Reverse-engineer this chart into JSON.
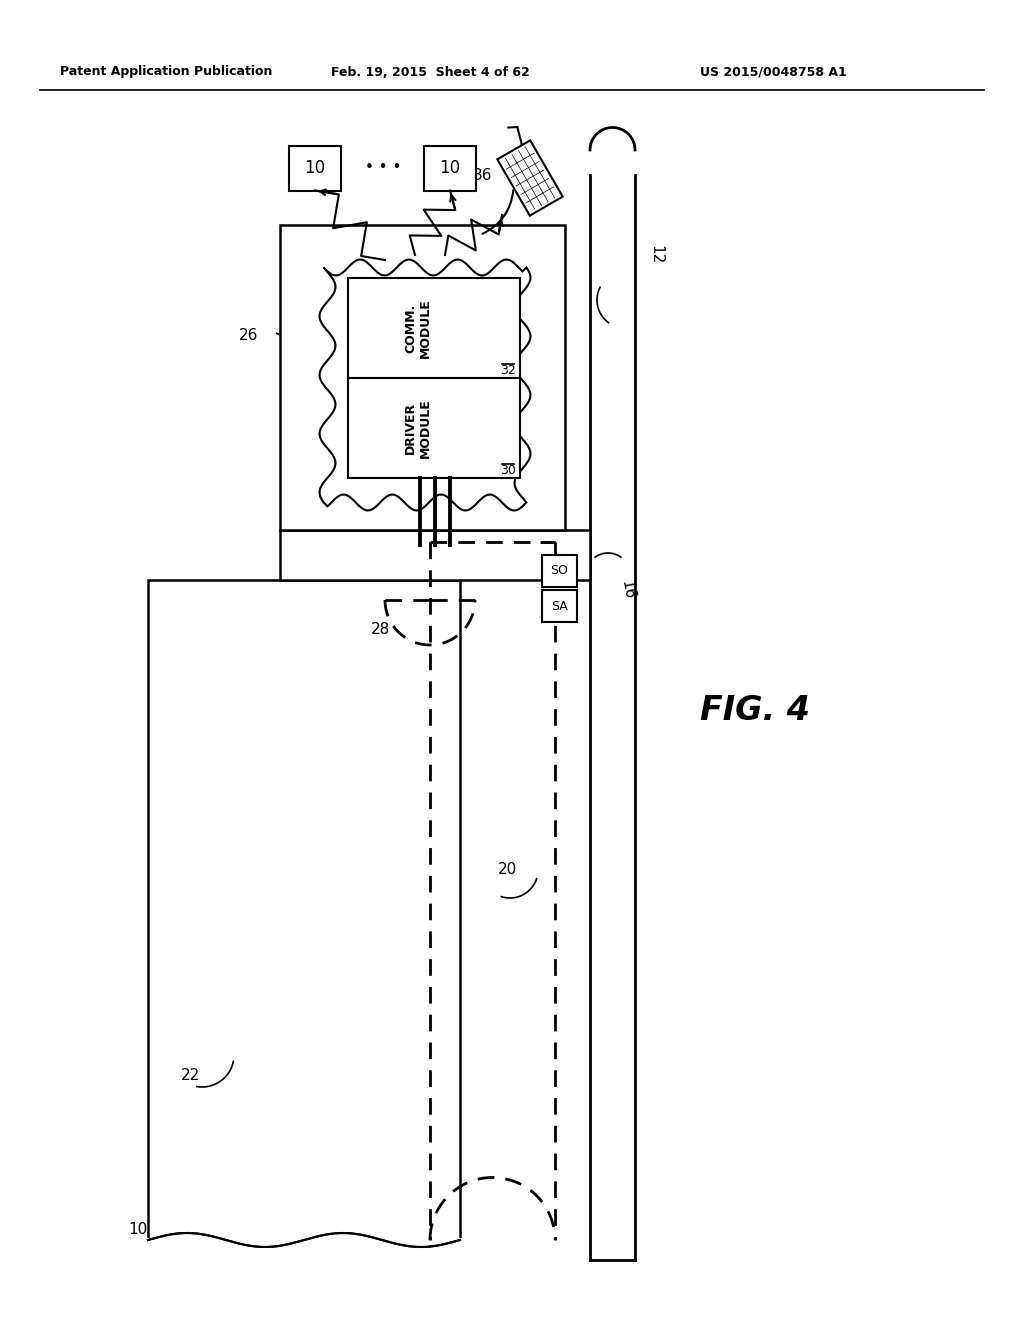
{
  "bg_color": "#ffffff",
  "line_color": "#000000",
  "header_left": "Patent Application Publication",
  "header_center": "Feb. 19, 2015  Sheet 4 of 62",
  "header_right": "US 2015/0048758 A1",
  "fig_label": "FIG. 4",
  "label_10a": "10",
  "label_10b": "10",
  "label_36": "36",
  "label_26": "26",
  "label_12": "12",
  "label_16": "16",
  "label_32": "32",
  "label_30": "30",
  "label_28": "28",
  "label_20": "20",
  "label_22": "22",
  "label_10c": "10",
  "label_SA": "SA",
  "label_SO": "SO",
  "comm_module_text": "COMM.\nMODULE",
  "driver_module_text": "DRIVER\nMODULE"
}
